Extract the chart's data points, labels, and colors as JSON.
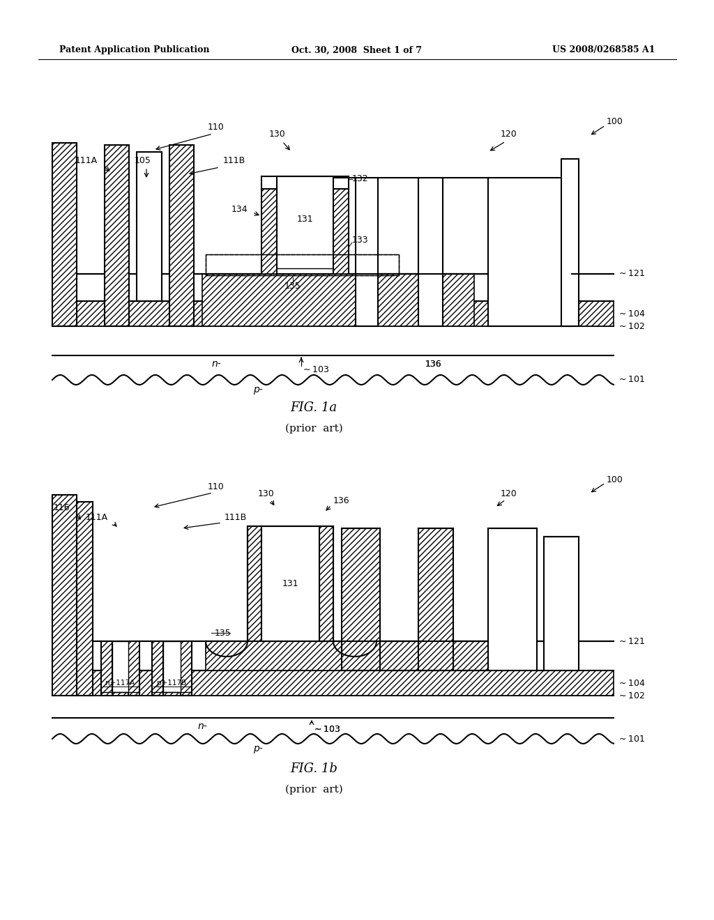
{
  "title_left": "Patent Application Publication",
  "title_center": "Oct. 30, 2008  Sheet 1 of 7",
  "title_right": "US 2008/0268585 A1",
  "fig1a_title": "FIG. 1a",
  "fig1a_subtitle": "(prior  art)",
  "fig1b_title": "FIG. 1b",
  "fig1b_subtitle": "(prior  art)",
  "bg_color": "#ffffff",
  "line_color": "#000000"
}
